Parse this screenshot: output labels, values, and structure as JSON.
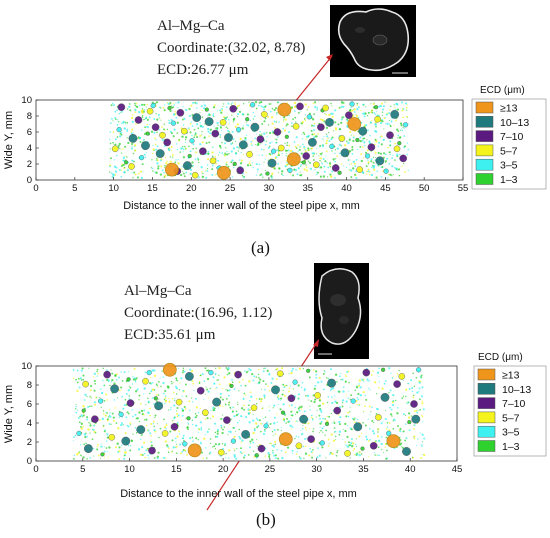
{
  "colors": {
    "ge13": "#f0951c",
    "10_13": "#1f7a7e",
    "7_10": "#5a1a7f",
    "5_7": "#f4f41c",
    "3_5": "#3ff0f0",
    "1_3": "#2fd12f"
  },
  "chart_data": [
    {
      "type": "scatter",
      "panel_label": "(a)",
      "xlabel": "Distance to the inner wall of the steel pipe x, mm",
      "ylabel": "Wide Y, mm",
      "xlim": [
        0,
        55
      ],
      "ylim": [
        0,
        10
      ],
      "xticks": [
        0,
        5,
        10,
        15,
        20,
        25,
        30,
        35,
        40,
        45,
        50,
        55
      ],
      "yticks": [
        0,
        2,
        4,
        6,
        8,
        10
      ],
      "data_extent_x": [
        9.5,
        48
      ],
      "legend": {
        "title": "ECD (μm)",
        "placement": "right",
        "entries": [
          "≥13",
          "10–13",
          "7–10",
          "5–7",
          "3–5",
          "1–3"
        ]
      },
      "annotation": {
        "lines": [
          "Al–Mg–Ca",
          "Coordinate:(32.02, 8.78)",
          "ECD:26.77 μm"
        ],
        "point": [
          32.02,
          8.78
        ]
      },
      "series": [
        {
          "name": "≥13",
          "points": [
            [
              32.0,
              8.8
            ],
            [
              33.2,
              2.6
            ],
            [
              24.2,
              0.9
            ],
            [
              17.5,
              1.3
            ],
            [
              41.0,
              7.0
            ]
          ]
        },
        {
          "name": "10–13",
          "points": [
            [
              12.5,
              5.2
            ],
            [
              14.1,
              4.3
            ],
            [
              16.0,
              3.3
            ],
            [
              19.5,
              1.8
            ],
            [
              22.3,
              7.3
            ],
            [
              24.8,
              5.3
            ],
            [
              26.7,
              4.4
            ],
            [
              28.2,
              6.6
            ],
            [
              30.4,
              2.1
            ],
            [
              35.6,
              4.7
            ],
            [
              37.8,
              7.2
            ],
            [
              39.8,
              3.4
            ],
            [
              42.1,
              6.1
            ],
            [
              44.3,
              2.4
            ],
            [
              46.2,
              8.2
            ],
            [
              20.7,
              7.8
            ]
          ]
        },
        {
          "name": "7–10",
          "points": [
            [
              11.0,
              9.1
            ],
            [
              13.2,
              7.5
            ],
            [
              15.4,
              6.6
            ],
            [
              16.9,
              4.7
            ],
            [
              18.6,
              8.4
            ],
            [
              21.5,
              3.6
            ],
            [
              23.1,
              5.8
            ],
            [
              25.4,
              8.9
            ],
            [
              26.3,
              1.2
            ],
            [
              28.9,
              5.1
            ],
            [
              31.1,
              6.0
            ],
            [
              34.0,
              9.2
            ],
            [
              34.8,
              3.0
            ],
            [
              36.7,
              6.6
            ],
            [
              38.6,
              1.5
            ],
            [
              40.3,
              8.1
            ],
            [
              43.2,
              4.1
            ],
            [
              45.6,
              5.6
            ],
            [
              47.3,
              2.7
            ],
            [
              18.2,
              1.1
            ]
          ]
        },
        {
          "name": "5–7",
          "points": [
            [
              10.2,
              3.9
            ],
            [
              12.3,
              1.7
            ],
            [
              14.7,
              8.6
            ],
            [
              16.3,
              5.6
            ],
            [
              19.1,
              6.1
            ],
            [
              20.5,
              0.6
            ],
            [
              22.8,
              2.4
            ],
            [
              24.1,
              7.2
            ],
            [
              27.5,
              3.2
            ],
            [
              29.4,
              8.2
            ],
            [
              31.6,
              4.0
            ],
            [
              33.5,
              6.7
            ],
            [
              36.1,
              1.9
            ],
            [
              37.3,
              9.0
            ],
            [
              39.4,
              5.2
            ],
            [
              41.7,
              1.3
            ],
            [
              44.0,
              7.6
            ],
            [
              46.5,
              3.9
            ]
          ]
        },
        {
          "name": "3–5",
          "points": [
            [
              10.7,
              6.3
            ],
            [
              13.6,
              2.8
            ],
            [
              15.1,
              9.3
            ],
            [
              17.7,
              7.1
            ],
            [
              20.1,
              4.9
            ],
            [
              23.6,
              1.5
            ],
            [
              26.1,
              6.3
            ],
            [
              27.9,
              9.4
            ],
            [
              30.6,
              3.6
            ],
            [
              32.7,
              1.2
            ],
            [
              35.2,
              7.9
            ],
            [
              38.1,
              4.2
            ],
            [
              40.7,
              9.5
            ],
            [
              42.7,
              3.0
            ],
            [
              45.1,
              1.1
            ],
            [
              47.6,
              6.9
            ]
          ]
        },
        {
          "name": "1–3",
          "points": [
            [
              11.6,
              2.2
            ],
            [
              14.4,
              5.8
            ],
            [
              17.2,
              9.0
            ],
            [
              19.8,
              3.0
            ],
            [
              22.0,
              8.8
            ],
            [
              25.6,
              2.0
            ],
            [
              27.2,
              7.6
            ],
            [
              29.8,
              0.8
            ],
            [
              32.3,
              5.4
            ],
            [
              34.5,
              2.2
            ],
            [
              36.9,
              8.7
            ],
            [
              39.1,
              0.9
            ],
            [
              41.4,
              5.0
            ],
            [
              43.8,
              9.1
            ],
            [
              46.8,
              4.6
            ]
          ]
        }
      ]
    },
    {
      "type": "scatter",
      "panel_label": "(b)",
      "xlabel": "Distance to the inner wall of the steel pipe x, mm",
      "ylabel": "Wide Y, mm",
      "xlim": [
        0,
        45
      ],
      "ylim": [
        0,
        10
      ],
      "xticks": [
        0,
        5,
        10,
        15,
        20,
        25,
        30,
        35,
        40,
        45
      ],
      "yticks": [
        0,
        2,
        4,
        6,
        8,
        10
      ],
      "data_extent_x": [
        4,
        41.5
      ],
      "legend": {
        "title": "ECD (μm)",
        "placement": "right",
        "entries": [
          "≥13",
          "10–13",
          "7–10",
          "5–7",
          "3–5",
          "1–3"
        ]
      },
      "annotation": {
        "lines": [
          "Al–Mg–Ca",
          "Coordinate:(16.96, 1.12)",
          "ECD:35.61 μm"
        ],
        "point": [
          16.96,
          1.12
        ]
      },
      "series": [
        {
          "name": "≥13",
          "points": [
            [
              16.96,
              1.12
            ],
            [
              38.2,
              2.1
            ],
            [
              14.3,
              9.6
            ],
            [
              26.7,
              2.3
            ]
          ]
        },
        {
          "name": "10–13",
          "points": [
            [
              5.6,
              1.3
            ],
            [
              8.4,
              7.6
            ],
            [
              11.2,
              3.3
            ],
            [
              13.1,
              5.8
            ],
            [
              16.4,
              8.9
            ],
            [
              19.3,
              6.2
            ],
            [
              22.4,
              2.8
            ],
            [
              25.6,
              7.5
            ],
            [
              28.6,
              4.4
            ],
            [
              31.6,
              8.2
            ],
            [
              34.4,
              3.6
            ],
            [
              37.3,
              6.7
            ],
            [
              39.6,
              1.0
            ],
            [
              40.6,
              4.4
            ],
            [
              9.6,
              2.1
            ]
          ]
        },
        {
          "name": "7–10",
          "points": [
            [
              6.3,
              4.4
            ],
            [
              7.6,
              9.1
            ],
            [
              10.1,
              6.1
            ],
            [
              12.4,
              1.1
            ],
            [
              14.8,
              3.6
            ],
            [
              17.6,
              7.4
            ],
            [
              20.4,
              4.3
            ],
            [
              21.6,
              9.1
            ],
            [
              24.1,
              1.3
            ],
            [
              27.3,
              6.6
            ],
            [
              29.4,
              2.3
            ],
            [
              32.2,
              5.3
            ],
            [
              35.3,
              9.3
            ],
            [
              36.1,
              1.6
            ],
            [
              38.6,
              8.1
            ],
            [
              40.4,
              6.0
            ]
          ]
        },
        {
          "name": "5–7",
          "points": [
            [
              5.3,
              8.1
            ],
            [
              8.1,
              2.5
            ],
            [
              11.7,
              8.4
            ],
            [
              13.8,
              2.9
            ],
            [
              18.1,
              5.1
            ],
            [
              19.8,
              0.9
            ],
            [
              23.3,
              5.6
            ],
            [
              26.1,
              9.2
            ],
            [
              30.1,
              6.9
            ],
            [
              33.3,
              0.8
            ],
            [
              36.6,
              4.6
            ],
            [
              39.1,
              8.9
            ],
            [
              15.3,
              6.2
            ],
            [
              28.1,
              1.6
            ]
          ]
        },
        {
          "name": "3–5",
          "points": [
            [
              4.6,
              2.9
            ],
            [
              6.9,
              6.3
            ],
            [
              9.1,
              4.9
            ],
            [
              12.1,
              9.3
            ],
            [
              15.9,
              1.8
            ],
            [
              18.7,
              9.3
            ],
            [
              21.1,
              2.1
            ],
            [
              24.6,
              3.7
            ],
            [
              27.7,
              8.3
            ],
            [
              30.6,
              1.9
            ],
            [
              33.9,
              6.3
            ],
            [
              37.7,
              2.9
            ],
            [
              40.9,
              9.6
            ]
          ]
        },
        {
          "name": "1–3",
          "points": [
            [
              5.1,
              5.3
            ],
            [
              7.1,
              0.7
            ],
            [
              9.9,
              8.6
            ],
            [
              12.8,
              6.6
            ],
            [
              16.3,
              4.5
            ],
            [
              20.9,
              7.9
            ],
            [
              23.6,
              0.6
            ],
            [
              26.4,
              5.1
            ],
            [
              29.1,
              9.5
            ],
            [
              31.1,
              3.9
            ],
            [
              34.9,
              1.3
            ],
            [
              37.1,
              9.6
            ],
            [
              39.9,
              4.1
            ]
          ]
        }
      ]
    }
  ]
}
